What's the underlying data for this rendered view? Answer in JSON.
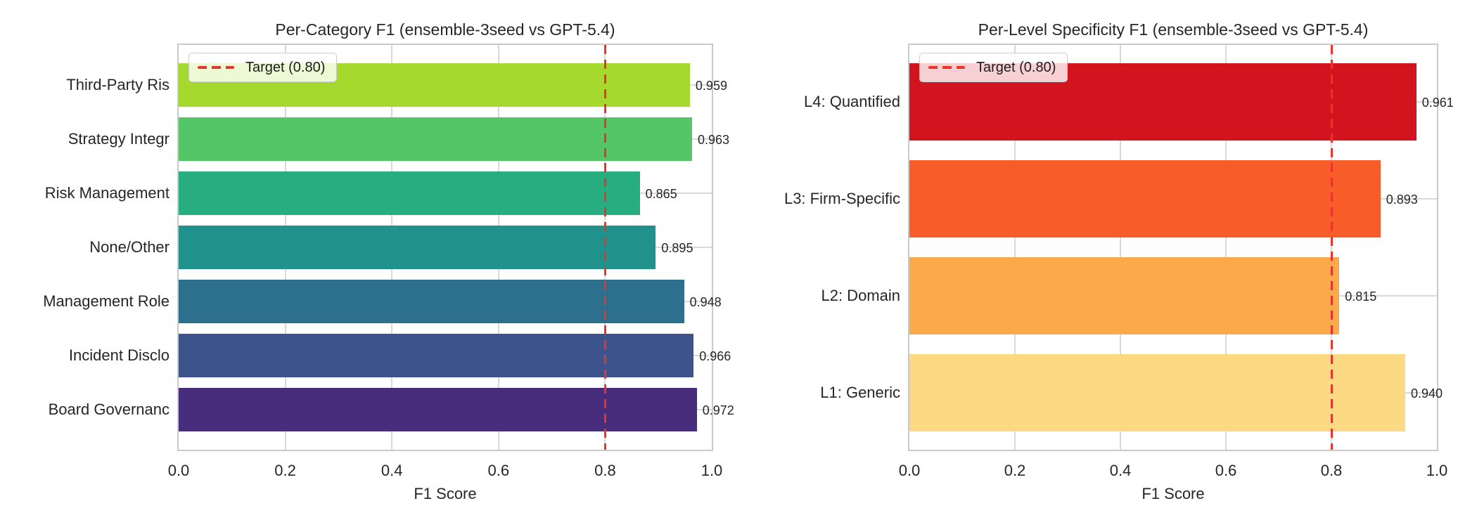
{
  "style": {
    "background": "#ffffff",
    "text_color": "#262626",
    "grid_color": "#d9d9d9",
    "spine_color": "#c9c9c9",
    "target_color": "#e8342a"
  },
  "chart_data": [
    {
      "type": "bar",
      "orientation": "horizontal",
      "title": "Per-Category F1 (ensemble-3seed vs GPT-5.4)",
      "xlabel": "F1 Score",
      "xlim": [
        0.0,
        1.0
      ],
      "xticks": [
        0.0,
        0.2,
        0.4,
        0.6,
        0.8,
        1.0
      ],
      "xtick_labels": [
        "0.0",
        "0.2",
        "0.4",
        "0.6",
        "0.8",
        "1.0"
      ],
      "grid": true,
      "legend_label": "Target (0.80)",
      "legend_position": "upper left",
      "reference_line": {
        "value": 0.8,
        "color": "#e8342a",
        "style": "dashed",
        "label": "Target (0.80)"
      },
      "categories": [
        "Third-Party Ris",
        "Strategy Integr",
        "Risk Management",
        "None/Other",
        "Management Role",
        "Incident Disclo",
        "Board Governanc"
      ],
      "values": [
        0.959,
        0.963,
        0.865,
        0.895,
        0.948,
        0.966,
        0.972
      ],
      "value_labels": [
        "0.959",
        "0.963",
        "0.865",
        "0.895",
        "0.948",
        "0.966",
        "0.972"
      ],
      "bar_colors": [
        "#a6d92d",
        "#55c667",
        "#28ad80",
        "#21918c",
        "#2d708e",
        "#3d538c",
        "#472d7c"
      ]
    },
    {
      "type": "bar",
      "orientation": "horizontal",
      "title": "Per-Level Specificity F1 (ensemble-3seed vs GPT-5.4)",
      "xlabel": "F1 Score",
      "xlim": [
        0.0,
        1.0
      ],
      "xticks": [
        0.0,
        0.2,
        0.4,
        0.6,
        0.8,
        1.0
      ],
      "xtick_labels": [
        "0.0",
        "0.2",
        "0.4",
        "0.6",
        "0.8",
        "1.0"
      ],
      "grid": true,
      "legend_label": "Target (0.80)",
      "legend_position": "upper left",
      "reference_line": {
        "value": 0.8,
        "color": "#e8342a",
        "style": "dashed",
        "label": "Target (0.80)"
      },
      "categories": [
        "L4: Quantified",
        "L3: Firm-Specific",
        "L2: Domain",
        "L1: Generic"
      ],
      "values": [
        0.961,
        0.893,
        0.815,
        0.94
      ],
      "value_labels": [
        "0.961",
        "0.893",
        "0.815",
        "0.940"
      ],
      "bar_colors": [
        "#d2141f",
        "#f85c28",
        "#fca94b",
        "#fcda84"
      ]
    }
  ]
}
